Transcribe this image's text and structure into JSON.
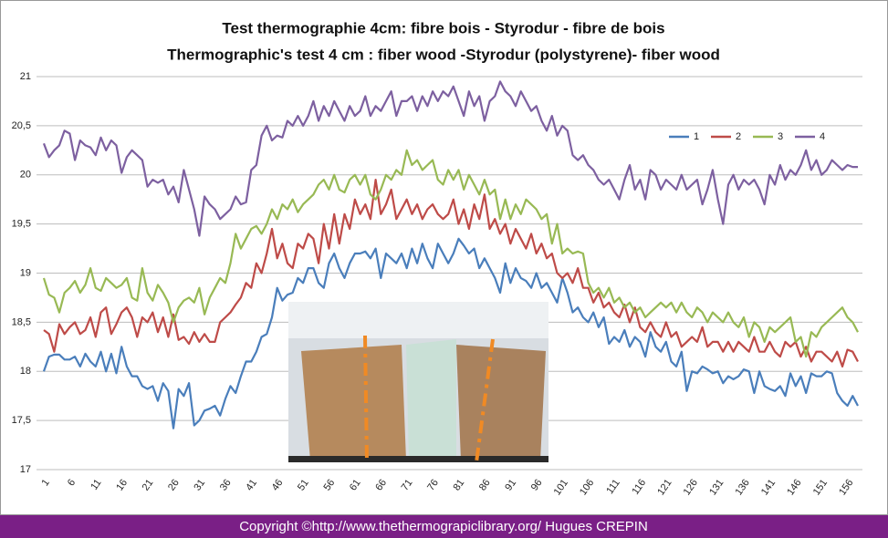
{
  "chart_data": {
    "type": "line",
    "title": "Test thermographie 4cm:  fibre bois - Styrodur - fibre de bois",
    "subtitle": "Thermographic's test 4 cm : fiber wood -Styrodur (polystyrene)- fiber wood",
    "footer": "Copyright ©http://www.thethermograpiclibrary.org/ Hugues CREPIN",
    "categories": [
      "1",
      null,
      null,
      null,
      null,
      "6",
      null,
      null,
      null,
      null,
      "11",
      null,
      null,
      null,
      null,
      "16",
      null,
      null,
      null,
      null,
      "21",
      null,
      null,
      null,
      null,
      "26",
      null,
      null,
      null,
      null,
      "31",
      null,
      null,
      null,
      null,
      "36",
      null,
      null,
      null,
      null,
      "41",
      null,
      null,
      null,
      null,
      "46",
      null,
      null,
      null,
      null,
      "51",
      null,
      null,
      null,
      null,
      "56",
      null,
      null,
      null,
      null,
      "61",
      null,
      null,
      null,
      null,
      "66",
      null,
      null,
      null,
      null,
      "71",
      null,
      null,
      null,
      null,
      "76",
      null,
      null,
      null,
      null,
      "81",
      null,
      null,
      null,
      null,
      "86",
      null,
      null,
      null,
      null,
      "91",
      null,
      null,
      null,
      null,
      "96",
      null,
      null,
      null,
      null,
      "101",
      null,
      null,
      null,
      null,
      "106",
      null,
      null,
      null,
      null,
      "111",
      null,
      null,
      null,
      null,
      "116",
      null,
      null,
      null,
      null,
      "121",
      null,
      null,
      null,
      null,
      "126",
      null,
      null,
      null,
      null,
      "131",
      null,
      null,
      null,
      null,
      "136",
      null,
      null,
      null,
      null,
      "141",
      null,
      null,
      null,
      null,
      "146",
      null,
      null,
      null,
      null,
      "151",
      null,
      null,
      null,
      null,
      "156",
      null,
      null
    ],
    "series": [
      {
        "name": "1",
        "color": "#4a7ebb",
        "values": [
          18.0,
          18.15,
          18.17,
          18.17,
          18.12,
          18.12,
          18.15,
          18.05,
          18.18,
          18.1,
          18.05,
          18.2,
          18.0,
          18.18,
          17.98,
          18.25,
          18.05,
          17.95,
          17.95,
          17.85,
          17.82,
          17.85,
          17.7,
          17.88,
          17.8,
          17.42,
          17.82,
          17.75,
          17.88,
          17.45,
          17.5,
          17.6,
          17.62,
          17.65,
          17.55,
          17.72,
          17.85,
          17.78,
          17.95,
          18.1,
          18.1,
          18.2,
          18.35,
          18.38,
          18.55,
          18.85,
          18.72,
          18.78,
          18.8,
          18.95,
          18.9,
          19.05,
          19.05,
          18.9,
          18.85,
          19.1,
          19.2,
          19.05,
          18.95,
          19.1,
          19.2,
          19.2,
          19.22,
          19.15,
          19.25,
          18.95,
          19.2,
          19.15,
          19.1,
          19.2,
          19.05,
          19.25,
          19.1,
          19.3,
          19.15,
          19.05,
          19.3,
          19.2,
          19.1,
          19.2,
          19.35,
          19.28,
          19.2,
          19.25,
          19.05,
          19.15,
          19.05,
          18.95,
          18.8,
          19.1,
          18.9,
          19.05,
          18.95,
          18.92,
          18.85,
          19.0,
          18.85,
          18.9,
          18.8,
          18.7,
          18.95,
          18.8,
          18.6,
          18.65,
          18.55,
          18.5,
          18.6,
          18.45,
          18.55,
          18.28,
          18.35,
          18.3,
          18.42,
          18.25,
          18.35,
          18.3,
          18.15,
          18.4,
          18.25,
          18.2,
          18.3,
          18.1,
          18.05,
          18.2,
          17.8,
          18.0,
          17.98,
          18.05,
          18.02,
          17.98,
          18.0,
          17.88,
          17.95,
          17.92,
          17.95,
          18.02,
          18.0,
          17.78,
          18.0,
          17.85,
          17.82,
          17.8,
          17.85,
          17.75,
          17.98,
          17.85,
          17.95,
          17.78,
          17.98,
          17.95,
          17.95,
          18.0,
          17.98,
          17.78,
          17.7,
          17.65,
          17.75,
          17.65
        ]
      },
      {
        "name": "2",
        "color": "#be4b48",
        "values": [
          18.42,
          18.38,
          18.2,
          18.48,
          18.38,
          18.45,
          18.5,
          18.38,
          18.42,
          18.55,
          18.35,
          18.6,
          18.65,
          18.38,
          18.48,
          18.6,
          18.65,
          18.55,
          18.35,
          18.55,
          18.5,
          18.6,
          18.4,
          18.55,
          18.35,
          18.58,
          18.32,
          18.35,
          18.28,
          18.4,
          18.3,
          18.38,
          18.3,
          18.3,
          18.5,
          18.55,
          18.6,
          18.68,
          18.75,
          18.9,
          18.85,
          19.1,
          19.0,
          19.2,
          19.45,
          19.15,
          19.3,
          19.1,
          19.05,
          19.3,
          19.25,
          19.4,
          19.35,
          19.1,
          19.5,
          19.25,
          19.6,
          19.3,
          19.6,
          19.45,
          19.75,
          19.6,
          19.7,
          19.55,
          19.95,
          19.6,
          19.7,
          19.85,
          19.55,
          19.65,
          19.75,
          19.6,
          19.7,
          19.55,
          19.65,
          19.7,
          19.6,
          19.55,
          19.6,
          19.75,
          19.5,
          19.65,
          19.45,
          19.7,
          19.55,
          19.8,
          19.45,
          19.55,
          19.4,
          19.5,
          19.3,
          19.45,
          19.35,
          19.25,
          19.4,
          19.2,
          19.3,
          19.15,
          19.2,
          19.0,
          18.95,
          19.0,
          18.9,
          19.05,
          18.85,
          18.85,
          18.7,
          18.8,
          18.65,
          18.7,
          18.6,
          18.55,
          18.68,
          18.5,
          18.65,
          18.45,
          18.4,
          18.5,
          18.4,
          18.35,
          18.5,
          18.35,
          18.4,
          18.25,
          18.3,
          18.35,
          18.3,
          18.45,
          18.25,
          18.3,
          18.3,
          18.2,
          18.3,
          18.2,
          18.3,
          18.25,
          18.2,
          18.35,
          18.2,
          18.2,
          18.3,
          18.2,
          18.15,
          18.3,
          18.25,
          18.3,
          18.15,
          18.25,
          18.1,
          18.2,
          18.2,
          18.15,
          18.1,
          18.2,
          18.05,
          18.22,
          18.2,
          18.1
        ]
      },
      {
        "name": "3",
        "color": "#98b954",
        "values": [
          18.95,
          18.78,
          18.75,
          18.6,
          18.8,
          18.85,
          18.92,
          18.8,
          18.88,
          19.05,
          18.85,
          18.82,
          18.95,
          18.9,
          18.85,
          18.88,
          18.95,
          18.75,
          18.72,
          19.05,
          18.8,
          18.72,
          18.88,
          18.8,
          18.7,
          18.5,
          18.65,
          18.72,
          18.75,
          18.7,
          18.85,
          18.58,
          18.75,
          18.85,
          18.95,
          18.9,
          19.1,
          19.4,
          19.25,
          19.35,
          19.45,
          19.48,
          19.4,
          19.5,
          19.65,
          19.55,
          19.7,
          19.65,
          19.75,
          19.62,
          19.7,
          19.75,
          19.8,
          19.9,
          19.95,
          19.85,
          20.0,
          19.85,
          19.82,
          19.95,
          20.0,
          19.9,
          20.0,
          19.8,
          19.75,
          19.85,
          20.0,
          19.95,
          20.05,
          20.0,
          20.25,
          20.1,
          20.15,
          20.05,
          20.1,
          20.15,
          19.95,
          19.9,
          20.05,
          19.95,
          20.05,
          19.85,
          20.0,
          19.9,
          19.8,
          19.95,
          19.8,
          19.85,
          19.55,
          19.75,
          19.55,
          19.7,
          19.6,
          19.75,
          19.7,
          19.65,
          19.55,
          19.6,
          19.3,
          19.5,
          19.2,
          19.25,
          19.2,
          19.22,
          19.2,
          18.9,
          18.8,
          18.85,
          18.75,
          18.85,
          18.7,
          18.75,
          18.65,
          18.7,
          18.6,
          18.65,
          18.55,
          18.6,
          18.65,
          18.7,
          18.65,
          18.7,
          18.6,
          18.7,
          18.6,
          18.55,
          18.65,
          18.6,
          18.5,
          18.6,
          18.55,
          18.5,
          18.6,
          18.5,
          18.45,
          18.55,
          18.35,
          18.5,
          18.45,
          18.3,
          18.45,
          18.4,
          18.45,
          18.5,
          18.55,
          18.3,
          18.35,
          18.15,
          18.4,
          18.35,
          18.45,
          18.5,
          18.55,
          18.6,
          18.65,
          18.55,
          18.5,
          18.4
        ]
      },
      {
        "name": "4",
        "color": "#7d60a0",
        "values": [
          20.32,
          20.18,
          20.25,
          20.3,
          20.45,
          20.42,
          20.15,
          20.35,
          20.3,
          20.28,
          20.2,
          20.38,
          20.25,
          20.35,
          20.3,
          20.02,
          20.18,
          20.25,
          20.2,
          20.15,
          19.88,
          19.95,
          19.92,
          19.95,
          19.8,
          19.88,
          19.72,
          20.05,
          19.85,
          19.65,
          19.38,
          19.78,
          19.7,
          19.65,
          19.55,
          19.6,
          19.65,
          19.78,
          19.7,
          19.72,
          20.05,
          20.1,
          20.4,
          20.5,
          20.35,
          20.4,
          20.38,
          20.55,
          20.5,
          20.6,
          20.5,
          20.6,
          20.75,
          20.55,
          20.7,
          20.6,
          20.75,
          20.65,
          20.55,
          20.7,
          20.6,
          20.65,
          20.8,
          20.6,
          20.7,
          20.65,
          20.75,
          20.85,
          20.6,
          20.75,
          20.75,
          20.8,
          20.65,
          20.8,
          20.7,
          20.85,
          20.75,
          20.85,
          20.8,
          20.9,
          20.75,
          20.6,
          20.85,
          20.7,
          20.8,
          20.55,
          20.75,
          20.8,
          20.95,
          20.85,
          20.8,
          20.7,
          20.85,
          20.75,
          20.65,
          20.7,
          20.55,
          20.45,
          20.6,
          20.4,
          20.5,
          20.45,
          20.2,
          20.15,
          20.2,
          20.1,
          20.05,
          19.95,
          19.9,
          19.95,
          19.85,
          19.75,
          19.95,
          20.1,
          19.85,
          19.95,
          19.75,
          20.05,
          20.0,
          19.85,
          19.95,
          19.9,
          19.85,
          20.0,
          19.85,
          19.9,
          19.95,
          19.7,
          19.85,
          20.05,
          19.75,
          19.5,
          19.9,
          20.0,
          19.85,
          19.95,
          19.9,
          19.95,
          19.85,
          19.7,
          20.0,
          19.9,
          20.1,
          19.95,
          20.05,
          20.0,
          20.1,
          20.25,
          20.05,
          20.15,
          20.0,
          20.05,
          20.15,
          20.1,
          20.05,
          20.1,
          20.08,
          20.08
        ]
      }
    ],
    "ylim": [
      17,
      21
    ],
    "yticks": [
      17,
      {
        "value": 17.5,
        "label": "17,5"
      },
      18,
      {
        "value": 18.5,
        "label": "18,5"
      },
      19,
      {
        "value": 19.5,
        "label": "19,5"
      },
      20,
      {
        "value": 20.5,
        "label": "20,5"
      },
      21
    ],
    "grid": true,
    "legend": "top-right"
  }
}
